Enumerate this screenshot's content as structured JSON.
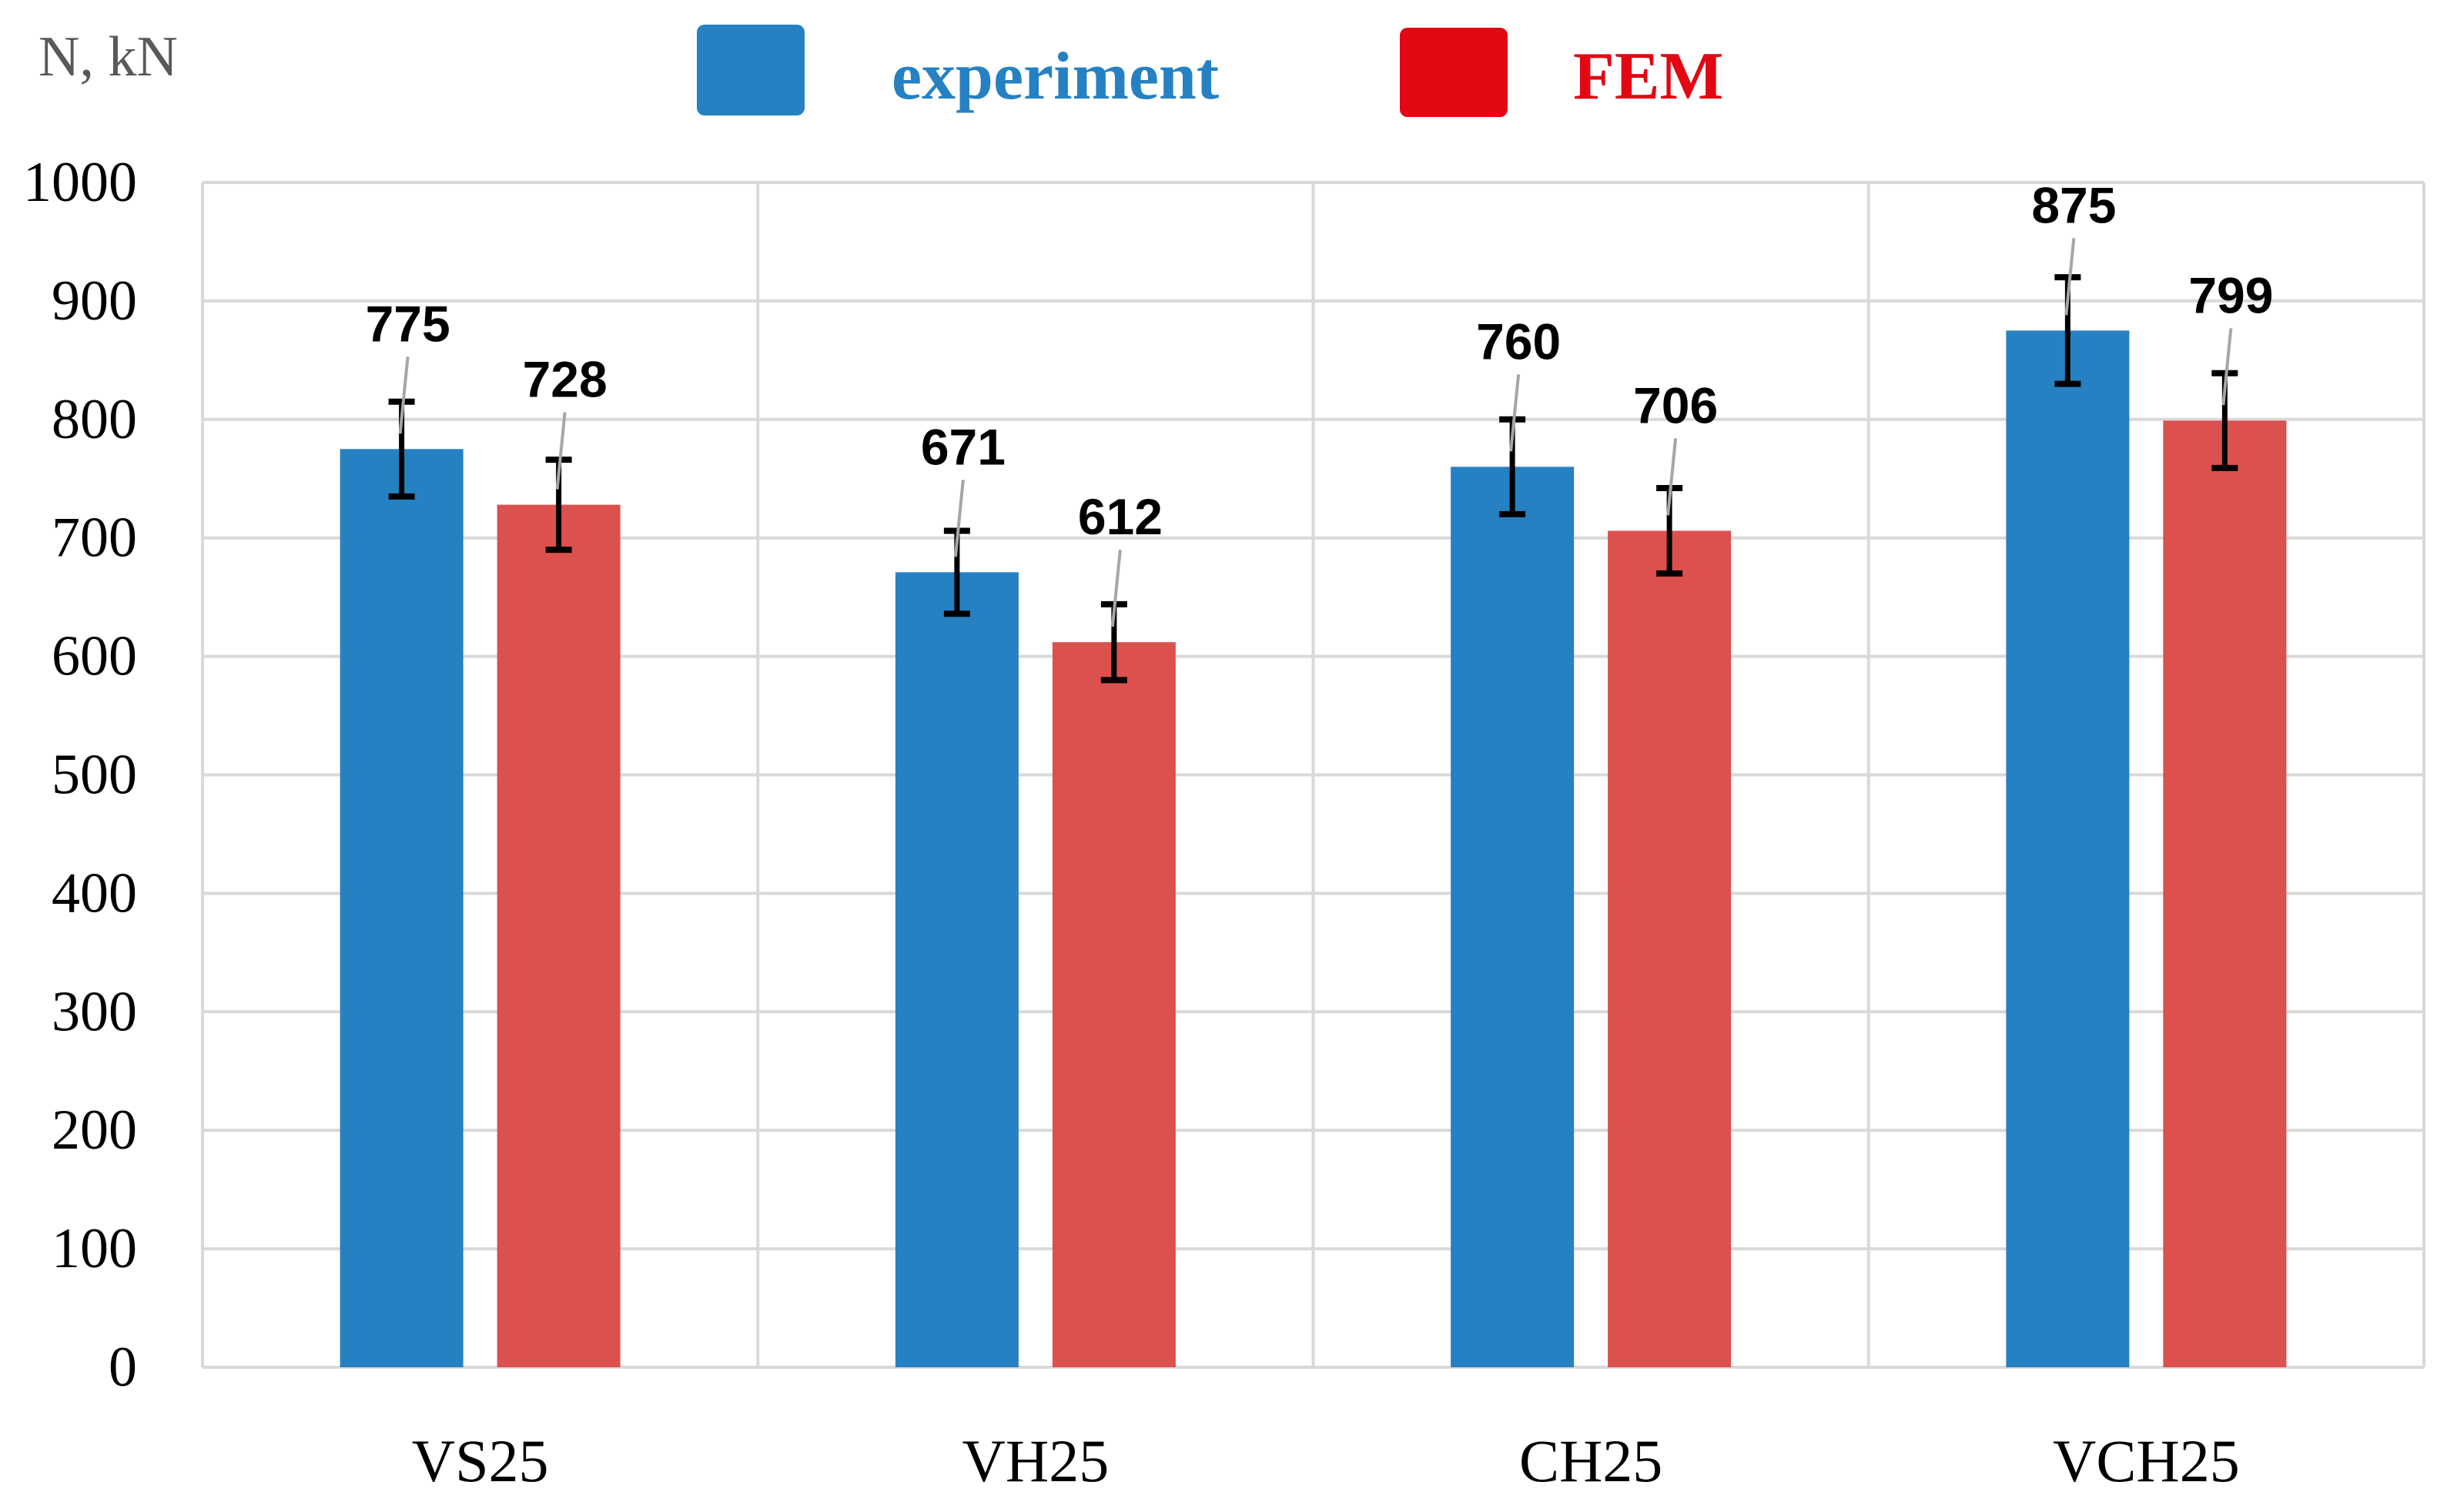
{
  "chart_data": {
    "type": "bar",
    "title": "",
    "xlabel": "",
    "ylabel": "N, kN",
    "ylim": [
      0,
      1000
    ],
    "yticks": [
      0,
      100,
      200,
      300,
      400,
      500,
      600,
      700,
      800,
      900,
      1000
    ],
    "categories": [
      "VS25",
      "VH25",
      "CH25",
      "VCH25"
    ],
    "series": [
      {
        "name": "experiment",
        "color": "#2581C2",
        "values": [
          775,
          671,
          760,
          875
        ],
        "labels": [
          "775",
          "671",
          "760",
          "875"
        ],
        "error": [
          40,
          35,
          40,
          45
        ]
      },
      {
        "name": "FEM",
        "color": "#DC504E",
        "legend_color": "#E30613",
        "values": [
          728,
          612,
          706,
          799
        ],
        "labels": [
          "728",
          "612",
          "706",
          "799"
        ],
        "error": [
          38,
          32,
          36,
          40
        ]
      }
    ],
    "legend_position": "top-center",
    "grid": true
  }
}
